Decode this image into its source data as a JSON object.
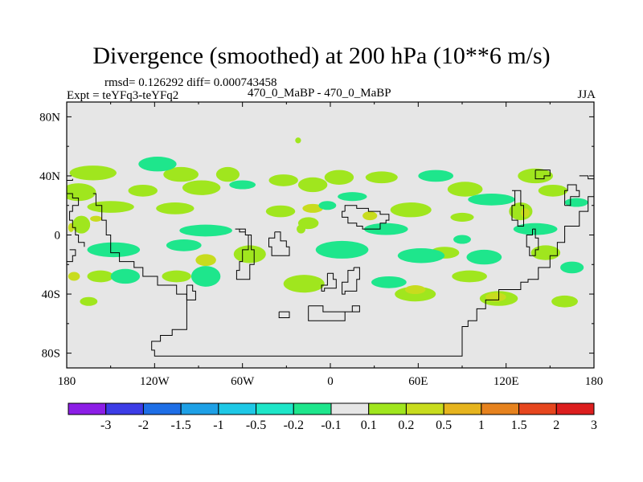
{
  "chart_data": {
    "type": "heatmap",
    "title": "Divergence (smoothed) at 200 hPa (10**6 m/s)",
    "stats_text": "rmsd= 0.126292  diff= 0.000743458",
    "left_label": "Expt = teYFq3-teYFq2",
    "center_label": "470_0_MaBP - 470_0_MaBP",
    "right_label": "JJA",
    "x_axis": {
      "range": [
        -180,
        180
      ],
      "ticks": [
        -180,
        -120,
        -60,
        0,
        60,
        120,
        180
      ],
      "tick_labels": [
        "180",
        "120W",
        "60W",
        "0",
        "60E",
        "120E",
        "180"
      ]
    },
    "y_axis": {
      "range": [
        -90,
        90
      ],
      "ticks": [
        80,
        40,
        0,
        -40,
        -80
      ],
      "tick_labels": [
        "80N",
        "40N",
        "0",
        "40S",
        "80S"
      ]
    },
    "colorbar": {
      "boundaries": [
        "-3",
        "-2",
        "-1.5",
        "-1",
        "-0.5",
        "-0.2",
        "-0.1",
        "0.1",
        "0.2",
        "0.5",
        "1",
        "1.5",
        "2",
        "3"
      ],
      "colors": [
        "#8c1ee6",
        "#3c3ce6",
        "#1e6ee6",
        "#1ea0e6",
        "#1ec8e6",
        "#1ee6c8",
        "#1ee68c",
        "#e6e6e6",
        "#a0e61e",
        "#c8dc1e",
        "#e6b41e",
        "#e6821e",
        "#e6461e",
        "#dc1e1e"
      ]
    },
    "blobs": [
      {
        "lon": -162,
        "lat": 42,
        "rx": 16,
        "ry": 5,
        "value": 0.15
      },
      {
        "lon": -172,
        "lat": 29,
        "rx": 12,
        "ry": 6,
        "value": 0.15
      },
      {
        "lon": -128,
        "lat": 30,
        "rx": 10,
        "ry": 4,
        "value": 0.15
      },
      {
        "lon": -102,
        "lat": 41,
        "rx": 12,
        "ry": 5,
        "value": 0.15
      },
      {
        "lon": -88,
        "lat": 32,
        "rx": 13,
        "ry": 5,
        "value": 0.15
      },
      {
        "lon": -70,
        "lat": 41,
        "rx": 8,
        "ry": 5,
        "value": 0.15
      },
      {
        "lon": -32,
        "lat": 37,
        "rx": 10,
        "ry": 4,
        "value": 0.15
      },
      {
        "lon": -12,
        "lat": 34,
        "rx": 10,
        "ry": 5,
        "value": 0.15
      },
      {
        "lon": 6,
        "lat": 39,
        "rx": 10,
        "ry": 5,
        "value": 0.15
      },
      {
        "lon": 35,
        "lat": 39,
        "rx": 11,
        "ry": 4,
        "value": 0.15
      },
      {
        "lon": 92,
        "lat": 31,
        "rx": 12,
        "ry": 5,
        "value": 0.15
      },
      {
        "lon": 140,
        "lat": 40,
        "rx": 12,
        "ry": 5,
        "value": 0.15
      },
      {
        "lon": 152,
        "lat": 30,
        "rx": 10,
        "ry": 4,
        "value": 0.15
      },
      {
        "lon": -150,
        "lat": 19,
        "rx": 16,
        "ry": 4,
        "value": 0.15
      },
      {
        "lon": -106,
        "lat": 18,
        "rx": 13,
        "ry": 4,
        "value": 0.15
      },
      {
        "lon": -34,
        "lat": 16,
        "rx": 10,
        "ry": 4,
        "value": 0.15
      },
      {
        "lon": -15,
        "lat": 8,
        "rx": 7,
        "ry": 4,
        "value": 0.15
      },
      {
        "lon": 55,
        "lat": 17,
        "rx": 14,
        "ry": 5,
        "value": 0.15
      },
      {
        "lon": 90,
        "lat": 12,
        "rx": 8,
        "ry": 3,
        "value": 0.15
      },
      {
        "lon": 130,
        "lat": 16,
        "rx": 8,
        "ry": 6,
        "value": 0.15
      },
      {
        "lon": -170,
        "lat": 7,
        "rx": 6,
        "ry": 6,
        "value": 0.15
      },
      {
        "lon": -55,
        "lat": -13,
        "rx": 11,
        "ry": 6,
        "value": 0.15
      },
      {
        "lon": 78,
        "lat": -12,
        "rx": 10,
        "ry": 4,
        "value": 0.15
      },
      {
        "lon": 147,
        "lat": -12,
        "rx": 10,
        "ry": 5,
        "value": 0.15
      },
      {
        "lon": -157,
        "lat": -28,
        "rx": 9,
        "ry": 4,
        "value": 0.15
      },
      {
        "lon": -105,
        "lat": -28,
        "rx": 10,
        "ry": 4,
        "value": 0.15
      },
      {
        "lon": -18,
        "lat": -33,
        "rx": 14,
        "ry": 6,
        "value": 0.15
      },
      {
        "lon": 58,
        "lat": -40,
        "rx": 14,
        "ry": 5,
        "value": 0.15
      },
      {
        "lon": 95,
        "lat": -28,
        "rx": 12,
        "ry": 4,
        "value": 0.15
      },
      {
        "lon": 115,
        "lat": -43,
        "rx": 13,
        "ry": 5,
        "value": 0.15
      },
      {
        "lon": 160,
        "lat": -45,
        "rx": 9,
        "ry": 4,
        "value": 0.15
      },
      {
        "lon": -165,
        "lat": -45,
        "rx": 6,
        "ry": 3,
        "value": 0.15
      },
      {
        "lon": -20,
        "lat": 4,
        "rx": 3,
        "ry": 3,
        "value": 0.15
      },
      {
        "lon": -22,
        "lat": 64,
        "rx": 2,
        "ry": 2,
        "value": 0.15
      },
      {
        "lon": -160,
        "lat": 11,
        "rx": 4,
        "ry": 2,
        "value": 0.35
      },
      {
        "lon": -12,
        "lat": 18,
        "rx": 7,
        "ry": 3,
        "value": 0.35
      },
      {
        "lon": 27,
        "lat": 13,
        "rx": 5,
        "ry": 3,
        "value": 0.35
      },
      {
        "lon": 58,
        "lat": -37,
        "rx": 7,
        "ry": 3,
        "value": 0.35
      },
      {
        "lon": 113,
        "lat": -42,
        "rx": 7,
        "ry": 3,
        "value": 0.35
      },
      {
        "lon": 133,
        "lat": 15,
        "rx": 3,
        "ry": 3,
        "value": 0.35
      },
      {
        "lon": -85,
        "lat": -17,
        "rx": 7,
        "ry": 4,
        "value": 0.35
      },
      {
        "lon": -175,
        "lat": -28,
        "rx": 4,
        "ry": 3,
        "value": 0.35
      },
      {
        "lon": -177,
        "lat": 5,
        "rx": 2,
        "ry": 3,
        "value": 0.35
      },
      {
        "lon": -118,
        "lat": 48,
        "rx": 13,
        "ry": 5,
        "value": -0.15
      },
      {
        "lon": -60,
        "lat": 34,
        "rx": 9,
        "ry": 3,
        "value": -0.15
      },
      {
        "lon": 15,
        "lat": 26,
        "rx": 10,
        "ry": 3,
        "value": -0.15
      },
      {
        "lon": 72,
        "lat": 40,
        "rx": 12,
        "ry": 4,
        "value": -0.15
      },
      {
        "lon": 110,
        "lat": 24,
        "rx": 16,
        "ry": 4,
        "value": -0.15
      },
      {
        "lon": -85,
        "lat": 3,
        "rx": 18,
        "ry": 4,
        "value": -0.15
      },
      {
        "lon": 38,
        "lat": 4,
        "rx": 15,
        "ry": 4,
        "value": -0.15
      },
      {
        "lon": 140,
        "lat": 4,
        "rx": 15,
        "ry": 4,
        "value": -0.15
      },
      {
        "lon": -148,
        "lat": -10,
        "rx": 18,
        "ry": 5,
        "value": -0.15
      },
      {
        "lon": -100,
        "lat": -7,
        "rx": 12,
        "ry": 4,
        "value": -0.15
      },
      {
        "lon": 8,
        "lat": -10,
        "rx": 18,
        "ry": 6,
        "value": -0.15
      },
      {
        "lon": 62,
        "lat": -14,
        "rx": 16,
        "ry": 5,
        "value": -0.15
      },
      {
        "lon": 105,
        "lat": -15,
        "rx": 12,
        "ry": 5,
        "value": -0.15
      },
      {
        "lon": -140,
        "lat": -28,
        "rx": 10,
        "ry": 5,
        "value": -0.15
      },
      {
        "lon": -85,
        "lat": -28,
        "rx": 10,
        "ry": 7,
        "value": -0.15
      },
      {
        "lon": 40,
        "lat": -32,
        "rx": 12,
        "ry": 4,
        "value": -0.15
      },
      {
        "lon": 165,
        "lat": -22,
        "rx": 8,
        "ry": 4,
        "value": -0.15
      },
      {
        "lon": -2,
        "lat": 20,
        "rx": 6,
        "ry": 3,
        "value": -0.15
      },
      {
        "lon": 168,
        "lat": 22,
        "rx": 8,
        "ry": 3,
        "value": -0.15
      },
      {
        "lon": 90,
        "lat": -3,
        "rx": 6,
        "ry": 3,
        "value": -0.15
      }
    ],
    "coastlines": [
      [
        [
          -162,
          28
        ],
        [
          -160,
          20
        ],
        [
          -156,
          10
        ],
        [
          -153,
          0
        ],
        [
          -150,
          -12
        ],
        [
          -144,
          -18
        ],
        [
          -134,
          -22
        ],
        [
          -128,
          -28
        ],
        [
          -118,
          -34
        ],
        [
          -105,
          -40
        ],
        [
          -98,
          -52
        ],
        [
          -98,
          -64
        ],
        [
          -108,
          -68
        ],
        [
          -116,
          -72
        ],
        [
          -122,
          -78
        ],
        [
          -120,
          -82
        ],
        [
          90,
          -82
        ],
        [
          90,
          -62
        ],
        [
          94,
          -58
        ],
        [
          100,
          -50
        ],
        [
          106,
          -44
        ],
        [
          115,
          -37
        ],
        [
          130,
          -32
        ],
        [
          135,
          -30
        ],
        [
          142,
          -22
        ],
        [
          150,
          -14
        ],
        [
          155,
          -5
        ],
        [
          160,
          6
        ],
        [
          170,
          16
        ],
        [
          176,
          26
        ],
        [
          180,
          28
        ]
      ],
      [
        [
          -180,
          28
        ],
        [
          -176,
          25
        ],
        [
          -172,
          24
        ],
        [
          -172,
          20
        ],
        [
          -176,
          16
        ],
        [
          -178,
          10
        ],
        [
          -176,
          5
        ],
        [
          -174,
          0
        ],
        [
          -172,
          -5
        ],
        [
          -168,
          -8
        ]
      ],
      [
        [
          -65,
          4
        ],
        [
          -62,
          2
        ],
        [
          -58,
          0
        ],
        [
          -56,
          -10
        ],
        [
          -60,
          -18
        ],
        [
          -62,
          -24
        ],
        [
          -64,
          -30
        ],
        [
          -58,
          -30
        ],
        [
          -55,
          -20
        ],
        [
          -52,
          -10
        ],
        [
          -54,
          0
        ],
        [
          -58,
          4
        ],
        [
          -65,
          4
        ]
      ],
      [
        [
          -38,
          2
        ],
        [
          -34,
          -4
        ],
        [
          -30,
          -8
        ],
        [
          -28,
          -14
        ],
        [
          -36,
          -14
        ],
        [
          -40,
          -8
        ],
        [
          -42,
          -2
        ],
        [
          -38,
          2
        ]
      ],
      [
        [
          10,
          16
        ],
        [
          8,
          12
        ],
        [
          12,
          8
        ],
        [
          18,
          6
        ],
        [
          22,
          4
        ],
        [
          30,
          4
        ],
        [
          34,
          8
        ],
        [
          38,
          10
        ],
        [
          40,
          14
        ],
        [
          34,
          16
        ],
        [
          26,
          18
        ],
        [
          18,
          20
        ],
        [
          10,
          16
        ]
      ],
      [
        [
          -2,
          -26
        ],
        [
          2,
          -30
        ],
        [
          4,
          -36
        ],
        [
          -4,
          -38
        ],
        [
          -6,
          -34
        ],
        [
          -2,
          -26
        ]
      ],
      [
        [
          16,
          -22
        ],
        [
          20,
          -30
        ],
        [
          18,
          -38
        ],
        [
          10,
          -40
        ],
        [
          8,
          -32
        ],
        [
          12,
          -24
        ],
        [
          16,
          -22
        ]
      ],
      [
        [
          -15,
          -48
        ],
        [
          -5,
          -52
        ],
        [
          5,
          -52
        ],
        [
          15,
          -48
        ],
        [
          20,
          -52
        ],
        [
          10,
          -58
        ],
        [
          -10,
          -58
        ],
        [
          -15,
          -48
        ]
      ],
      [
        [
          -35,
          -52
        ],
        [
          -28,
          -52
        ],
        [
          -28,
          -56
        ],
        [
          -35,
          -56
        ],
        [
          -35,
          -52
        ]
      ],
      [
        [
          124,
          30
        ],
        [
          126,
          20
        ],
        [
          124,
          10
        ],
        [
          128,
          6
        ],
        [
          132,
          20
        ],
        [
          130,
          30
        ],
        [
          124,
          30
        ]
      ],
      [
        [
          160,
          20
        ],
        [
          164,
          26
        ],
        [
          170,
          30
        ],
        [
          168,
          34
        ],
        [
          162,
          30
        ],
        [
          160,
          20
        ]
      ],
      [
        [
          138,
          4
        ],
        [
          140,
          -2
        ],
        [
          142,
          -10
        ],
        [
          140,
          -14
        ],
        [
          136,
          -8
        ],
        [
          134,
          0
        ],
        [
          138,
          4
        ]
      ],
      [
        [
          170,
          40
        ],
        [
          176,
          38
        ],
        [
          180,
          36
        ]
      ],
      [
        [
          -180,
          37
        ],
        [
          -176,
          38
        ]
      ],
      [
        [
          140,
          44
        ],
        [
          146,
          44
        ],
        [
          150,
          40
        ],
        [
          146,
          38
        ],
        [
          140,
          40
        ],
        [
          140,
          44
        ]
      ],
      [
        [
          -178,
          -10
        ],
        [
          -174,
          -14
        ],
        [
          -176,
          -18
        ],
        [
          -180,
          -16
        ]
      ],
      [
        [
          -98,
          -34
        ],
        [
          -94,
          -38
        ],
        [
          -92,
          -44
        ],
        [
          -96,
          -44
        ],
        [
          -98,
          -40
        ],
        [
          -98,
          -34
        ]
      ]
    ]
  }
}
